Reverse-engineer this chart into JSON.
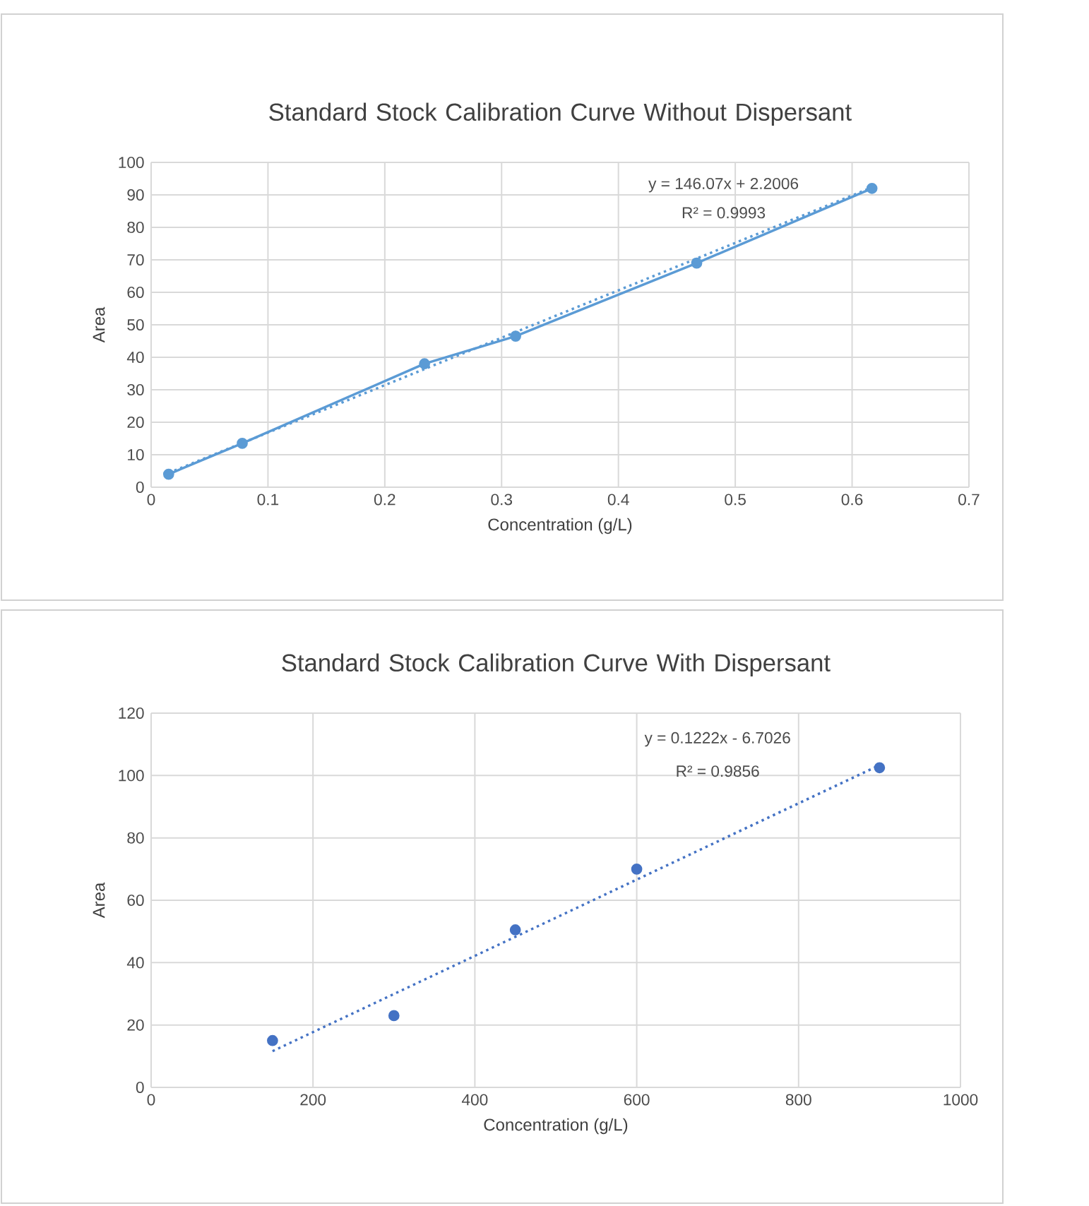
{
  "chart_data": [
    {
      "type": "scatter",
      "title": "Standard Stock Calibration Curve Without Dispersant",
      "xlabel": "Concentration (g/L)",
      "ylabel": "Area",
      "annotations": [
        "y = 146.07x + 2.2006",
        "R² = 0.9993"
      ],
      "xlim": [
        0,
        0.7
      ],
      "xticks": [
        0,
        0.1,
        0.2,
        0.3,
        0.4,
        0.5,
        0.6,
        0.7
      ],
      "ylim": [
        0,
        100
      ],
      "yticks": [
        0,
        10,
        20,
        30,
        40,
        50,
        60,
        70,
        80,
        90,
        100
      ],
      "grid": true,
      "series": [
        {
          "type": "line",
          "color": "#5b9bd5",
          "marker": "circle",
          "line_style": "solid",
          "x": [
            0.015,
            0.078,
            0.234,
            0.312,
            0.467,
            0.617
          ],
          "values": [
            4,
            13.5,
            38,
            46.5,
            69,
            92
          ]
        },
        {
          "type": "line",
          "color": "#5b9bd5",
          "marker": "none",
          "line_style": "dotted",
          "x": [
            0.015,
            0.617
          ],
          "values": [
            4.4,
            92.3
          ]
        }
      ]
    },
    {
      "type": "scatter",
      "title": "Standard Stock Calibration Curve With Dispersant",
      "xlabel": "Concentration (g/L)",
      "ylabel": "Area",
      "annotations": [
        "y = 0.1222x - 6.7026",
        "R² = 0.9856"
      ],
      "xlim": [
        0,
        1000
      ],
      "xticks": [
        0,
        200,
        400,
        600,
        800,
        1000
      ],
      "ylim": [
        0,
        120
      ],
      "yticks": [
        0,
        20,
        40,
        60,
        80,
        100,
        120
      ],
      "grid": true,
      "series": [
        {
          "type": "scatter",
          "color": "#4472c4",
          "marker": "circle",
          "x": [
            150,
            300,
            450,
            600,
            900
          ],
          "values": [
            15,
            23,
            50.5,
            70,
            102.5
          ]
        },
        {
          "type": "line",
          "color": "#4472c4",
          "marker": "none",
          "line_style": "dotted",
          "x": [
            150,
            900
          ],
          "values": [
            11.6,
            103.3
          ]
        }
      ]
    }
  ]
}
